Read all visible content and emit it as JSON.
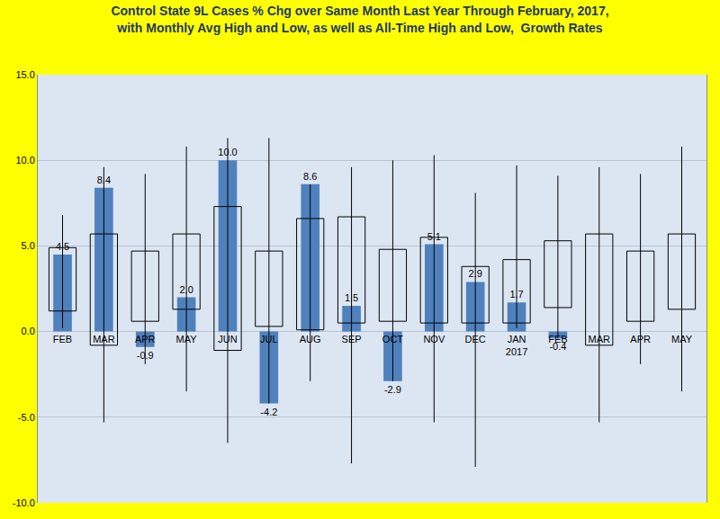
{
  "chart_data": {
    "type": "bar",
    "title": "Control State 9L Cases % Chg over Same Month Last Year Through February, 2017,\nwith Monthly Avg High and Low, as well as All-Time High and Low,  Growth Rates",
    "categories": [
      "FEB",
      "MAR",
      "APR",
      "MAY",
      "JUN",
      "JUL",
      "AUG",
      "SEP",
      "OCT",
      "NOV",
      "DEC",
      "JAN\n2017",
      "FEB",
      "MAR",
      "APR",
      "MAY"
    ],
    "values": [
      4.5,
      8.4,
      -0.9,
      2.0,
      10.0,
      -4.2,
      8.6,
      1.5,
      -2.9,
      5.1,
      2.9,
      1.7,
      -0.4,
      null,
      null,
      null
    ],
    "value_labels": [
      "4.5",
      "8.4",
      "-0.9",
      "2.0",
      "10.0",
      "-4.2",
      "8.6",
      "1.5",
      "-2.9",
      "5.1",
      "2.9",
      "1.7",
      "-0.4",
      null,
      null,
      null
    ],
    "color": "#4f81bd",
    "avg_high": [
      4.9,
      5.7,
      4.7,
      5.7,
      7.3,
      4.7,
      6.6,
      6.7,
      4.8,
      5.5,
      3.8,
      4.2,
      5.3,
      5.7,
      4.7,
      5.7
    ],
    "avg_low": [
      1.2,
      -0.8,
      0.6,
      1.3,
      -1.1,
      0.3,
      0.1,
      0.5,
      0.6,
      0.5,
      0.5,
      0.5,
      1.4,
      -0.8,
      0.6,
      1.3
    ],
    "all_time_high": [
      6.8,
      9.6,
      9.2,
      10.8,
      11.3,
      11.3,
      8.6,
      9.6,
      10.0,
      10.3,
      8.1,
      9.7,
      9.1,
      9.6,
      9.2,
      10.8
    ],
    "all_time_low": [
      0.2,
      -5.3,
      -1.9,
      -3.5,
      -6.5,
      -4.2,
      -2.9,
      -7.7,
      -2.9,
      -5.3,
      -7.9,
      0.2,
      -0.4,
      -5.3,
      -1.9,
      -3.5
    ],
    "ylim": [
      -10,
      15
    ],
    "yticks": [
      {
        "value": -10,
        "label": "-10.0"
      },
      {
        "value": -5,
        "label": "-5.0"
      },
      {
        "value": 0,
        "label": "0.0"
      },
      {
        "value": 5,
        "label": "5.0"
      },
      {
        "value": 10,
        "label": "10.0"
      },
      {
        "value": 15,
        "label": "15.0"
      }
    ],
    "grid": true,
    "data_labels": true
  }
}
